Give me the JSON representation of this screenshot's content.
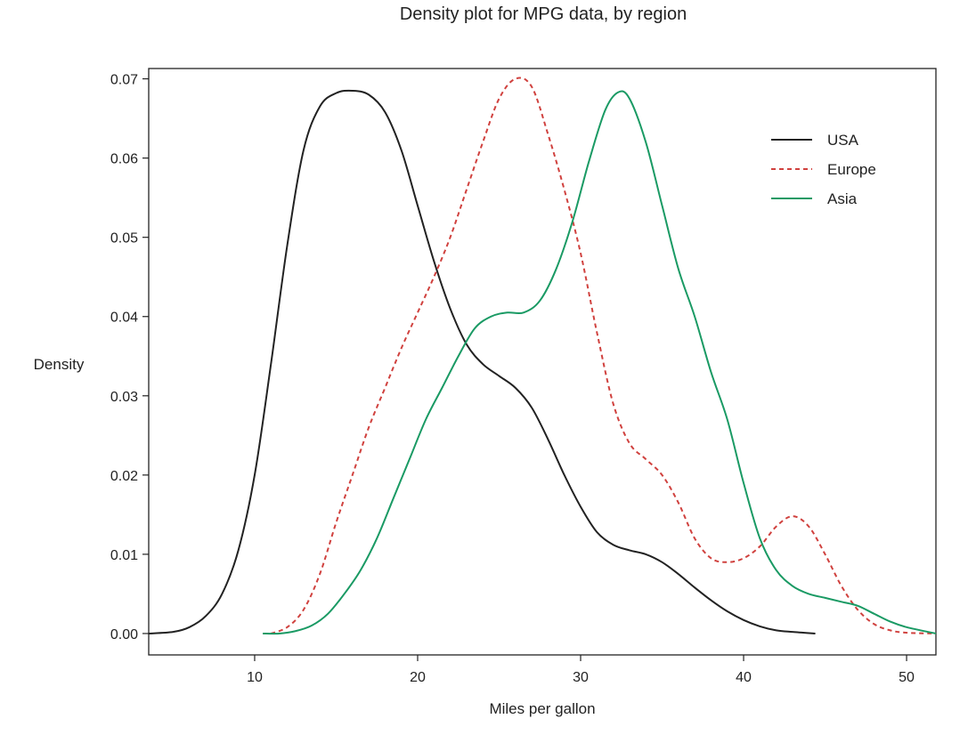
{
  "chart_data": {
    "type": "line",
    "title": "Density plot for MPG data, by region",
    "xlabel": "Miles per gallon",
    "ylabel": "Density",
    "xlim": [
      3.5,
      51.8
    ],
    "ylim": [
      -0.0027,
      0.0713
    ],
    "x_ticks": [
      10,
      20,
      30,
      40,
      50
    ],
    "y_ticks": [
      0.0,
      0.01,
      0.02,
      0.03,
      0.04,
      0.05,
      0.06,
      0.07
    ],
    "y_tick_labels": [
      "0.00",
      "0.01",
      "0.02",
      "0.03",
      "0.04",
      "0.05",
      "0.06",
      "0.07"
    ],
    "x_tick_labels": [
      "10",
      "20",
      "30",
      "40",
      "50"
    ],
    "grid": false,
    "legend_position": "top-right",
    "series": [
      {
        "name": "USA",
        "color": "#222222",
        "dash": "solid",
        "x": [
          3.5,
          5,
          6,
          7,
          8,
          9,
          10,
          11,
          12,
          13,
          14,
          15,
          16,
          17,
          18,
          19,
          20,
          21,
          22,
          23,
          24,
          25,
          26,
          27,
          28,
          29,
          30,
          31,
          32,
          33,
          34,
          35,
          36,
          37,
          38,
          39,
          40,
          41,
          42,
          43,
          44.4
        ],
        "values": [
          0.0,
          0.0002,
          0.0008,
          0.0022,
          0.005,
          0.0105,
          0.02,
          0.034,
          0.049,
          0.061,
          0.0665,
          0.0682,
          0.0685,
          0.068,
          0.0658,
          0.061,
          0.054,
          0.047,
          0.041,
          0.0365,
          0.034,
          0.0325,
          0.031,
          0.0285,
          0.0245,
          0.02,
          0.016,
          0.0128,
          0.0112,
          0.0105,
          0.01,
          0.009,
          0.0075,
          0.0058,
          0.0042,
          0.0028,
          0.0017,
          0.0009,
          0.0004,
          0.0002,
          0.0
        ]
      },
      {
        "name": "Europe",
        "color": "#d0413e",
        "dash": "dashed",
        "x": [
          11,
          12,
          13,
          14,
          15,
          16,
          17,
          18,
          19,
          20,
          21,
          22,
          23,
          24,
          25,
          26,
          27,
          28,
          29,
          30,
          31,
          32,
          33,
          34,
          35,
          36,
          37,
          38,
          39,
          40,
          41,
          42,
          43,
          44,
          45,
          46,
          47,
          48,
          49,
          50,
          51.8
        ],
        "values": [
          0.0,
          0.0008,
          0.003,
          0.0075,
          0.014,
          0.02,
          0.026,
          0.031,
          0.036,
          0.0405,
          0.045,
          0.05,
          0.056,
          0.062,
          0.0675,
          0.07,
          0.069,
          0.063,
          0.056,
          0.048,
          0.038,
          0.029,
          0.024,
          0.022,
          0.02,
          0.0165,
          0.012,
          0.0095,
          0.009,
          0.0095,
          0.011,
          0.0135,
          0.0148,
          0.0135,
          0.01,
          0.006,
          0.003,
          0.0012,
          0.0004,
          0.0001,
          0.0
        ]
      },
      {
        "name": "Asia",
        "color": "#1a9a64",
        "dash": "solid",
        "x": [
          10.5,
          11.5,
          12.5,
          13.5,
          14.5,
          15.5,
          16.5,
          17.5,
          18.5,
          19.5,
          20.5,
          21.5,
          22.5,
          23.5,
          24.5,
          25.5,
          26.5,
          27.5,
          28.5,
          29.5,
          30.5,
          31.5,
          32.3,
          33,
          34,
          35,
          36,
          37,
          38,
          39,
          40,
          41,
          42,
          43,
          44,
          45,
          46,
          47,
          48,
          49,
          50,
          51.8
        ],
        "values": [
          0.0,
          0.0,
          0.0003,
          0.001,
          0.0025,
          0.005,
          0.008,
          0.012,
          0.017,
          0.022,
          0.027,
          0.031,
          0.035,
          0.0385,
          0.04,
          0.0405,
          0.0405,
          0.042,
          0.046,
          0.052,
          0.0595,
          0.066,
          0.0683,
          0.0675,
          0.062,
          0.054,
          0.046,
          0.04,
          0.033,
          0.027,
          0.019,
          0.012,
          0.008,
          0.006,
          0.005,
          0.0045,
          0.004,
          0.0035,
          0.0025,
          0.0015,
          0.0008,
          0.0
        ]
      }
    ]
  }
}
